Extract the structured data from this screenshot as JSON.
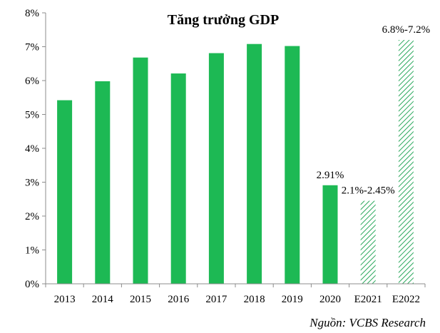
{
  "chart_data": {
    "type": "bar",
    "title": "Tăng trưởng GDP",
    "categories": [
      "2013",
      "2014",
      "2015",
      "2016",
      "2017",
      "2018",
      "2019",
      "2020",
      "E2021",
      "E2022"
    ],
    "values": [
      5.42,
      5.98,
      6.68,
      6.21,
      6.81,
      7.08,
      7.02,
      2.91,
      2.45,
      7.2
    ],
    "forecast_ranges": [
      null,
      null,
      null,
      null,
      null,
      null,
      null,
      null,
      [
        2.1,
        2.45
      ],
      [
        6.8,
        7.2
      ]
    ],
    "forecast": [
      false,
      false,
      false,
      false,
      false,
      false,
      false,
      false,
      true,
      true
    ],
    "data_labels": [
      "",
      "",
      "",
      "",
      "",
      "",
      "",
      "2.91%",
      "2.1%-2.45%",
      "6.8%-7.2%"
    ],
    "y_tick_labels": [
      "0%",
      "1%",
      "2%",
      "3%",
      "4%",
      "5%",
      "6%",
      "7%",
      "8%"
    ],
    "ylim": [
      0,
      8
    ],
    "xlabel": "",
    "ylabel": "",
    "grid": false,
    "source": "Nguồn: VCBS Research",
    "colors": {
      "actual": "#1db954",
      "forecast": "#2aa85c",
      "axis": "#8c8c8c"
    }
  }
}
